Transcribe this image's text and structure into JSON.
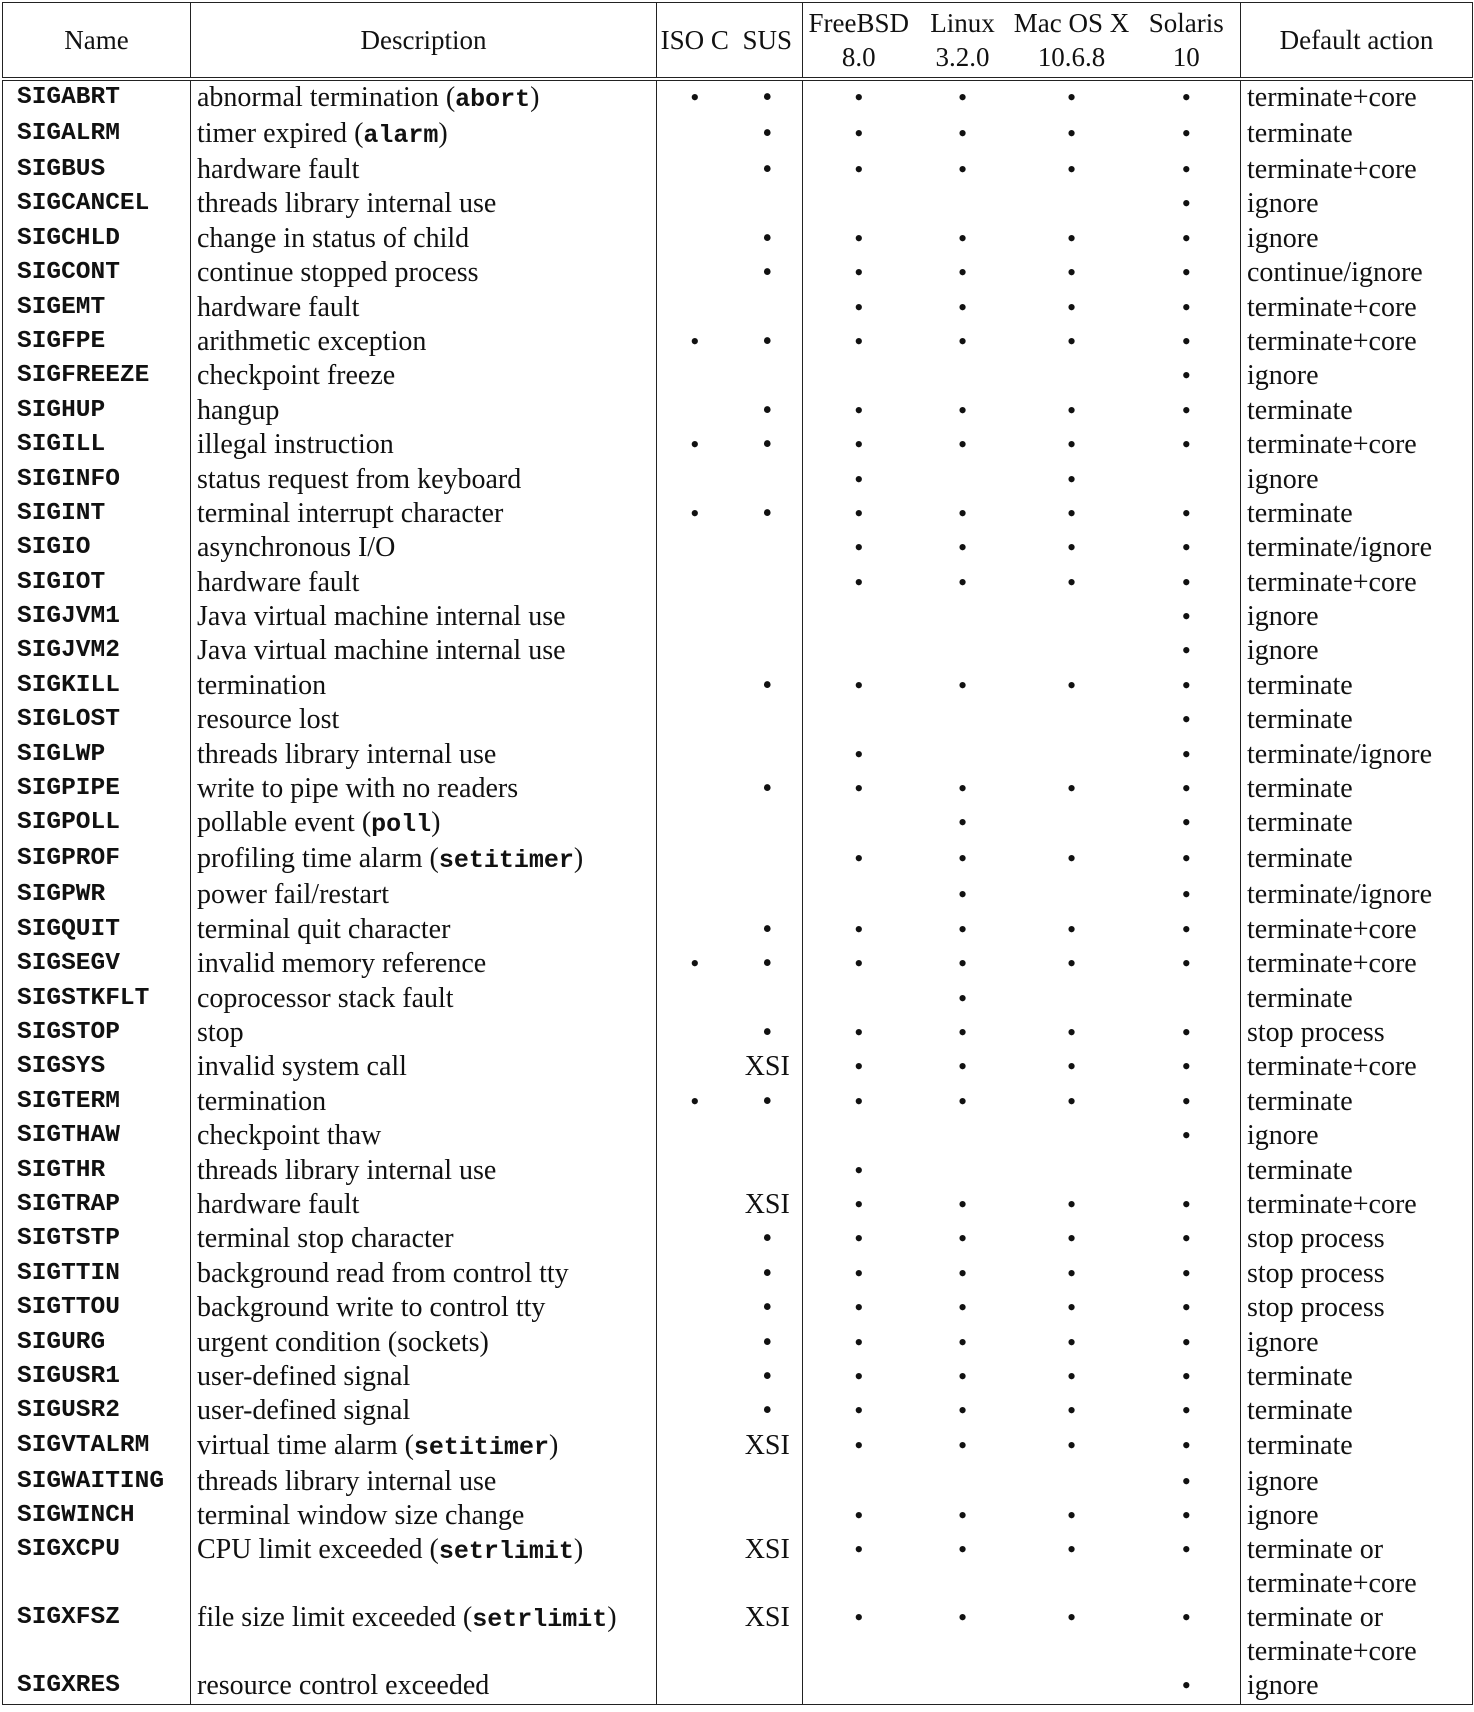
{
  "header": {
    "name": "Name",
    "description": "Description",
    "iso_c": "ISO C",
    "sus": "SUS",
    "freebsd": [
      "FreeBSD",
      "8.0"
    ],
    "linux": [
      "Linux",
      "3.2.0"
    ],
    "macos": [
      "Mac OS X",
      "10.6.8"
    ],
    "solaris": [
      "Solaris",
      "10"
    ],
    "default_action": "Default action"
  },
  "bullet": "•",
  "rows": [
    {
      "name": "SIGABRT",
      "desc": "abnormal termination",
      "fn": "abort",
      "iso": true,
      "sus": "•",
      "fb": true,
      "lx": true,
      "mac": true,
      "sol": true,
      "action": "terminate+core"
    },
    {
      "name": "SIGALRM",
      "desc": "timer expired",
      "fn": "alarm",
      "iso": false,
      "sus": "•",
      "fb": true,
      "lx": true,
      "mac": true,
      "sol": true,
      "action": "terminate"
    },
    {
      "name": "SIGBUS",
      "desc": "hardware fault",
      "fn": "",
      "iso": false,
      "sus": "•",
      "fb": true,
      "lx": true,
      "mac": true,
      "sol": true,
      "action": "terminate+core"
    },
    {
      "name": "SIGCANCEL",
      "desc": "threads library internal use",
      "fn": "",
      "iso": false,
      "sus": "",
      "fb": false,
      "lx": false,
      "mac": false,
      "sol": true,
      "action": "ignore"
    },
    {
      "name": "SIGCHLD",
      "desc": "change in status of child",
      "fn": "",
      "iso": false,
      "sus": "•",
      "fb": true,
      "lx": true,
      "mac": true,
      "sol": true,
      "action": "ignore"
    },
    {
      "name": "SIGCONT",
      "desc": "continue stopped process",
      "fn": "",
      "iso": false,
      "sus": "•",
      "fb": true,
      "lx": true,
      "mac": true,
      "sol": true,
      "action": "continue/ignore"
    },
    {
      "name": "SIGEMT",
      "desc": "hardware fault",
      "fn": "",
      "iso": false,
      "sus": "",
      "fb": true,
      "lx": true,
      "mac": true,
      "sol": true,
      "action": "terminate+core"
    },
    {
      "name": "SIGFPE",
      "desc": "arithmetic exception",
      "fn": "",
      "iso": true,
      "sus": "•",
      "fb": true,
      "lx": true,
      "mac": true,
      "sol": true,
      "action": "terminate+core"
    },
    {
      "name": "SIGFREEZE",
      "desc": "checkpoint freeze",
      "fn": "",
      "iso": false,
      "sus": "",
      "fb": false,
      "lx": false,
      "mac": false,
      "sol": true,
      "action": "ignore"
    },
    {
      "name": "SIGHUP",
      "desc": "hangup",
      "fn": "",
      "iso": false,
      "sus": "•",
      "fb": true,
      "lx": true,
      "mac": true,
      "sol": true,
      "action": "terminate"
    },
    {
      "name": "SIGILL",
      "desc": "illegal instruction",
      "fn": "",
      "iso": true,
      "sus": "•",
      "fb": true,
      "lx": true,
      "mac": true,
      "sol": true,
      "action": "terminate+core"
    },
    {
      "name": "SIGINFO",
      "desc": "status request from keyboard",
      "fn": "",
      "iso": false,
      "sus": "",
      "fb": true,
      "lx": false,
      "mac": true,
      "sol": false,
      "action": "ignore"
    },
    {
      "name": "SIGINT",
      "desc": "terminal interrupt character",
      "fn": "",
      "iso": true,
      "sus": "•",
      "fb": true,
      "lx": true,
      "mac": true,
      "sol": true,
      "action": "terminate"
    },
    {
      "name": "SIGIO",
      "desc": "asynchronous I/O",
      "fn": "",
      "iso": false,
      "sus": "",
      "fb": true,
      "lx": true,
      "mac": true,
      "sol": true,
      "action": "terminate/ignore"
    },
    {
      "name": "SIGIOT",
      "desc": "hardware fault",
      "fn": "",
      "iso": false,
      "sus": "",
      "fb": true,
      "lx": true,
      "mac": true,
      "sol": true,
      "action": "terminate+core"
    },
    {
      "name": "SIGJVM1",
      "desc": "Java virtual machine internal use",
      "fn": "",
      "iso": false,
      "sus": "",
      "fb": false,
      "lx": false,
      "mac": false,
      "sol": true,
      "action": "ignore"
    },
    {
      "name": "SIGJVM2",
      "desc": "Java virtual machine internal use",
      "fn": "",
      "iso": false,
      "sus": "",
      "fb": false,
      "lx": false,
      "mac": false,
      "sol": true,
      "action": "ignore"
    },
    {
      "name": "SIGKILL",
      "desc": "termination",
      "fn": "",
      "iso": false,
      "sus": "•",
      "fb": true,
      "lx": true,
      "mac": true,
      "sol": true,
      "action": "terminate"
    },
    {
      "name": "SIGLOST",
      "desc": "resource lost",
      "fn": "",
      "iso": false,
      "sus": "",
      "fb": false,
      "lx": false,
      "mac": false,
      "sol": true,
      "action": "terminate"
    },
    {
      "name": "SIGLWP",
      "desc": "threads library internal use",
      "fn": "",
      "iso": false,
      "sus": "",
      "fb": true,
      "lx": false,
      "mac": false,
      "sol": true,
      "action": "terminate/ignore"
    },
    {
      "name": "SIGPIPE",
      "desc": "write to pipe with no readers",
      "fn": "",
      "iso": false,
      "sus": "•",
      "fb": true,
      "lx": true,
      "mac": true,
      "sol": true,
      "action": "terminate"
    },
    {
      "name": "SIGPOLL",
      "desc": "pollable event",
      "fn": "poll",
      "iso": false,
      "sus": "",
      "fb": false,
      "lx": true,
      "mac": false,
      "sol": true,
      "action": "terminate"
    },
    {
      "name": "SIGPROF",
      "desc": "profiling time alarm",
      "fn": "setitimer",
      "iso": false,
      "sus": "",
      "fb": true,
      "lx": true,
      "mac": true,
      "sol": true,
      "action": "terminate"
    },
    {
      "name": "SIGPWR",
      "desc": "power fail/restart",
      "fn": "",
      "iso": false,
      "sus": "",
      "fb": false,
      "lx": true,
      "mac": false,
      "sol": true,
      "action": "terminate/ignore"
    },
    {
      "name": "SIGQUIT",
      "desc": "terminal quit character",
      "fn": "",
      "iso": false,
      "sus": "•",
      "fb": true,
      "lx": true,
      "mac": true,
      "sol": true,
      "action": "terminate+core"
    },
    {
      "name": "SIGSEGV",
      "desc": "invalid memory reference",
      "fn": "",
      "iso": true,
      "sus": "•",
      "fb": true,
      "lx": true,
      "mac": true,
      "sol": true,
      "action": "terminate+core"
    },
    {
      "name": "SIGSTKFLT",
      "desc": "coprocessor stack fault",
      "fn": "",
      "iso": false,
      "sus": "",
      "fb": false,
      "lx": true,
      "mac": false,
      "sol": false,
      "action": "terminate"
    },
    {
      "name": "SIGSTOP",
      "desc": "stop",
      "fn": "",
      "iso": false,
      "sus": "•",
      "fb": true,
      "lx": true,
      "mac": true,
      "sol": true,
      "action": "stop process"
    },
    {
      "name": "SIGSYS",
      "desc": "invalid system call",
      "fn": "",
      "iso": false,
      "sus": "XSI",
      "fb": true,
      "lx": true,
      "mac": true,
      "sol": true,
      "action": "terminate+core"
    },
    {
      "name": "SIGTERM",
      "desc": "termination",
      "fn": "",
      "iso": true,
      "sus": "•",
      "fb": true,
      "lx": true,
      "mac": true,
      "sol": true,
      "action": "terminate"
    },
    {
      "name": "SIGTHAW",
      "desc": "checkpoint thaw",
      "fn": "",
      "iso": false,
      "sus": "",
      "fb": false,
      "lx": false,
      "mac": false,
      "sol": true,
      "action": "ignore"
    },
    {
      "name": "SIGTHR",
      "desc": "threads library internal use",
      "fn": "",
      "iso": false,
      "sus": "",
      "fb": true,
      "lx": false,
      "mac": false,
      "sol": false,
      "action": "terminate"
    },
    {
      "name": "SIGTRAP",
      "desc": "hardware fault",
      "fn": "",
      "iso": false,
      "sus": "XSI",
      "fb": true,
      "lx": true,
      "mac": true,
      "sol": true,
      "action": "terminate+core"
    },
    {
      "name": "SIGTSTP",
      "desc": "terminal stop character",
      "fn": "",
      "iso": false,
      "sus": "•",
      "fb": true,
      "lx": true,
      "mac": true,
      "sol": true,
      "action": "stop process"
    },
    {
      "name": "SIGTTIN",
      "desc": "background read from control tty",
      "fn": "",
      "iso": false,
      "sus": "•",
      "fb": true,
      "lx": true,
      "mac": true,
      "sol": true,
      "action": "stop process"
    },
    {
      "name": "SIGTTOU",
      "desc": "background write to control tty",
      "fn": "",
      "iso": false,
      "sus": "•",
      "fb": true,
      "lx": true,
      "mac": true,
      "sol": true,
      "action": "stop process"
    },
    {
      "name": "SIGURG",
      "desc": "urgent condition (sockets)",
      "fn": "",
      "iso": false,
      "sus": "•",
      "fb": true,
      "lx": true,
      "mac": true,
      "sol": true,
      "action": "ignore"
    },
    {
      "name": "SIGUSR1",
      "desc": "user-defined signal",
      "fn": "",
      "iso": false,
      "sus": "•",
      "fb": true,
      "lx": true,
      "mac": true,
      "sol": true,
      "action": "terminate"
    },
    {
      "name": "SIGUSR2",
      "desc": "user-defined signal",
      "fn": "",
      "iso": false,
      "sus": "•",
      "fb": true,
      "lx": true,
      "mac": true,
      "sol": true,
      "action": "terminate"
    },
    {
      "name": "SIGVTALRM",
      "desc": "virtual time alarm",
      "fn": "setitimer",
      "iso": false,
      "sus": "XSI",
      "fb": true,
      "lx": true,
      "mac": true,
      "sol": true,
      "action": "terminate"
    },
    {
      "name": "SIGWAITING",
      "desc": "threads library internal use",
      "fn": "",
      "iso": false,
      "sus": "",
      "fb": false,
      "lx": false,
      "mac": false,
      "sol": true,
      "action": "ignore"
    },
    {
      "name": "SIGWINCH",
      "desc": "terminal window size change",
      "fn": "",
      "iso": false,
      "sus": "",
      "fb": true,
      "lx": true,
      "mac": true,
      "sol": true,
      "action": "ignore"
    },
    {
      "name": "SIGXCPU",
      "desc": "CPU limit exceeded",
      "fn": "setrlimit",
      "iso": false,
      "sus": "XSI",
      "fb": true,
      "lx": true,
      "mac": true,
      "sol": true,
      "action": "terminate or terminate+core"
    },
    {
      "name": "SIGXFSZ",
      "desc": "file size limit exceeded",
      "fn": "setrlimit",
      "iso": false,
      "sus": "XSI",
      "fb": true,
      "lx": true,
      "mac": true,
      "sol": true,
      "action": "terminate or terminate+core"
    },
    {
      "name": "SIGXRES",
      "desc": "resource control exceeded",
      "fn": "",
      "iso": false,
      "sus": "",
      "fb": false,
      "lx": false,
      "mac": false,
      "sol": true,
      "action": "ignore"
    }
  ]
}
